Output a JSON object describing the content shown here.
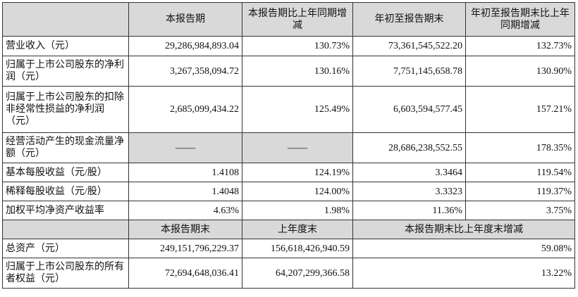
{
  "header": {
    "col1": "本报告期",
    "col2": "本报告期比上年同期增减",
    "col3": "年初至报告期末",
    "col4": "年初至报告期末比上年同期增减"
  },
  "rows": [
    {
      "label": "营业收入（元）",
      "v1": "29,286,984,893.04",
      "v2": "130.73%",
      "v3": "73,361,545,522.20",
      "v4": "132.73%"
    },
    {
      "label": "归属于上市公司股东的净利润（元）",
      "v1": "3,267,358,094.72",
      "v2": "130.16%",
      "v3": "7,751,145,658.78",
      "v4": "130.90%"
    },
    {
      "label": "归属于上市公司股东的扣除非经常性损益的净利润（元）",
      "v1": "2,685,099,434.22",
      "v2": "125.49%",
      "v3": "6,603,594,577.45",
      "v4": "157.21%"
    },
    {
      "label": "经营活动产生的现金流量净额（元）",
      "v1": "——",
      "v2": "——",
      "v3": "28,686,238,552.55",
      "v4": "178.35%"
    },
    {
      "label": "基本每股收益（元/股）",
      "v1": "1.4108",
      "v2": "124.19%",
      "v3": "3.3464",
      "v4": "119.54%"
    },
    {
      "label": "稀释每股收益（元/股）",
      "v1": "1.4048",
      "v2": "124.00%",
      "v3": "3.3323",
      "v4": "119.37%"
    },
    {
      "label": "加权平均净资产收益率",
      "v1": "4.63%",
      "v2": "1.98%",
      "v3": "11.36%",
      "v4": "3.75%"
    }
  ],
  "header2": {
    "col1": "本报告期末",
    "col2": "上年度末",
    "col3": "本报告期末比上年度末增减"
  },
  "rows2": [
    {
      "label": "总资产（元）",
      "v1": "249,151,796,229.37",
      "v2": "156,618,426,940.59",
      "v3": "59.08%"
    },
    {
      "label": "归属于上市公司股东的所有者权益（元）",
      "v1": "72,694,648,036.41",
      "v2": "64,207,299,366.58",
      "v3": "13.22%"
    }
  ]
}
